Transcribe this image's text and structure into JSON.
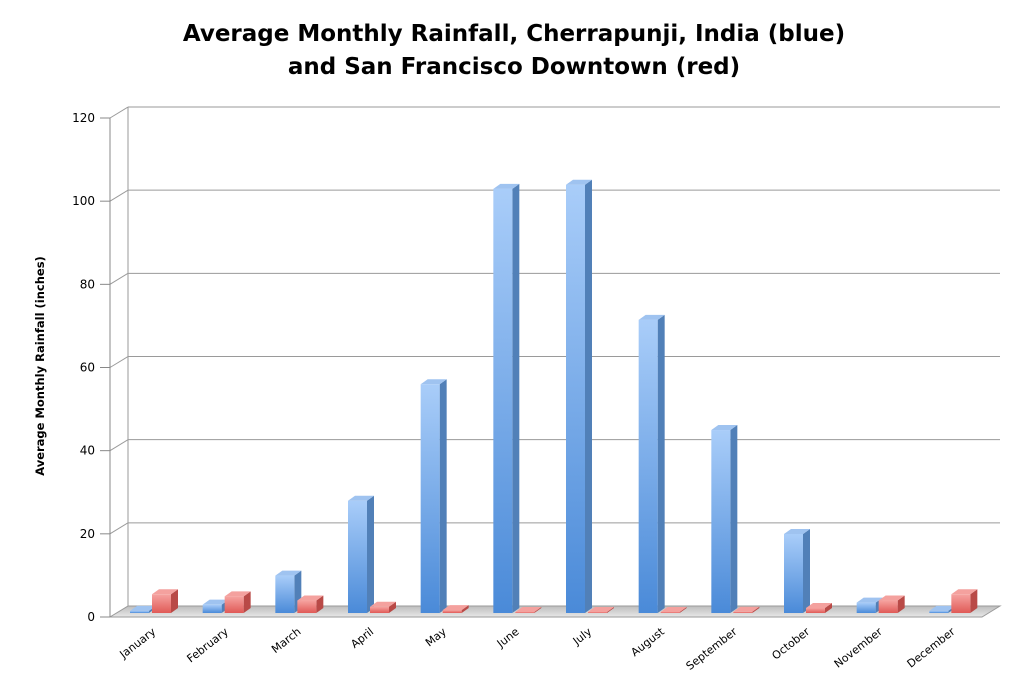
{
  "chart_data": {
    "type": "bar",
    "style": "3d-clustered-column",
    "title_lines": [
      "Average Monthly Rainfall, Cherrapunji, India (blue)",
      "and San Francisco Downtown (red)"
    ],
    "xlabel": "",
    "ylabel": "Average Monthly Rainfall (inches)",
    "ylim": [
      0,
      120
    ],
    "yticks": [
      "0",
      "20",
      "40",
      "60",
      "80",
      "100",
      "120"
    ],
    "grid": true,
    "legend": "none",
    "categories": [
      "January",
      "February",
      "March",
      "April",
      "May",
      "June",
      "July",
      "August",
      "September",
      "October",
      "November",
      "December"
    ],
    "series": [
      {
        "color": "#6fa4e6",
        "values": [
          0.5,
          2,
          9,
          27,
          55,
          102,
          103,
          70.5,
          44,
          19,
          2.5,
          0.5
        ]
      },
      {
        "color": "#e8706d",
        "values": [
          4.5,
          4,
          3,
          1.5,
          0.7,
          0.2,
          0,
          0.1,
          0.3,
          1.2,
          3,
          4.5
        ]
      }
    ]
  }
}
